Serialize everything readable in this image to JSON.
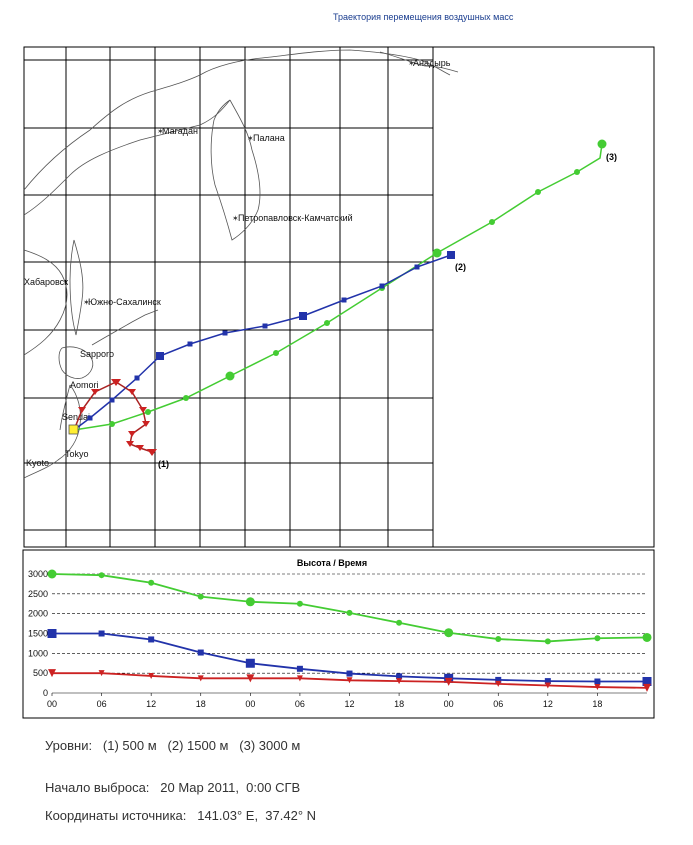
{
  "header": {
    "title": "Траектория перемещения воздушных масс"
  },
  "map": {
    "cities": [
      "Анадырь",
      "Магадан",
      "Палана",
      "Петропавловск-Камчатский",
      "Хабаровск",
      "Южно-Сахалинск",
      "Sapporo",
      "Aomori",
      "Sendai",
      "Tokyo",
      "Kyoto"
    ],
    "trajectory_labels": [
      "(1)",
      "(2)",
      "(3)"
    ],
    "colors": {
      "level1": "#cc2222",
      "level2": "#2233aa",
      "level3": "#44cc33",
      "source": "#ffee33",
      "land_outline": "#555555",
      "grid": "#000000"
    }
  },
  "chart_data": {
    "type": "line",
    "title": "Высота / Время",
    "xlabel": "",
    "ylabel": "",
    "x_tick_labels": [
      "00",
      "06",
      "12",
      "18",
      "00",
      "06",
      "12",
      "18",
      "00",
      "06",
      "12",
      "18"
    ],
    "x": [
      0,
      6,
      12,
      18,
      24,
      30,
      36,
      42,
      48,
      54,
      60,
      66,
      72
    ],
    "ylim": [
      0,
      3000
    ],
    "y_ticks": [
      0,
      500,
      1000,
      1500,
      2000,
      2500,
      3000
    ],
    "grid": "horizontal dashed",
    "series": [
      {
        "name": "(3)",
        "color": "#44cc33",
        "marker": "circle",
        "values": [
          3000,
          2970,
          2780,
          2430,
          2300,
          2250,
          2020,
          1770,
          1520,
          1360,
          1300,
          1380,
          1400
        ]
      },
      {
        "name": "(2)",
        "color": "#2233aa",
        "marker": "square",
        "values": [
          1500,
          1500,
          1350,
          1020,
          750,
          610,
          490,
          420,
          370,
          330,
          300,
          290,
          290
        ]
      },
      {
        "name": "(1)",
        "color": "#cc2222",
        "marker": "triangle",
        "values": [
          500,
          500,
          430,
          370,
          370,
          370,
          320,
          300,
          280,
          230,
          190,
          150,
          130
        ]
      }
    ]
  },
  "info": {
    "levels": "Уровни:   (1) 500 м   (2) 1500 м   (3) 3000 м",
    "release_start": "Начало выброса:   20 Мар 2011,  0:00 СГВ",
    "source_coordinates": "Координаты источника:   141.03° E,  37.42° N"
  }
}
